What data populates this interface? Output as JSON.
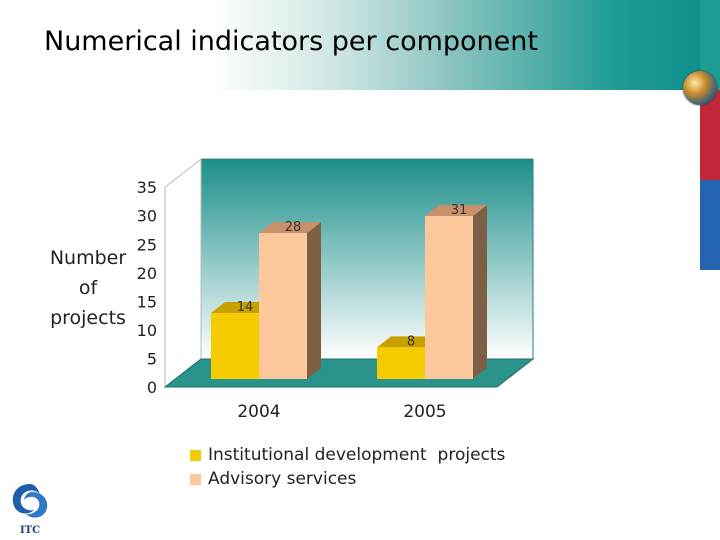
{
  "header": {
    "title": "Numerical indicators per component"
  },
  "brand": {
    "logo_text": "ITC",
    "globe_icon": "globe-icon",
    "strip_colors": [
      "#1f9b96",
      "#c0283a",
      "#2463b0"
    ]
  },
  "colors": {
    "back_wall_top": "#1c8f89",
    "back_wall_bottom": "#ffffff",
    "floor": "#2a948c",
    "series_front": [
      "#f5cc00",
      "#fcc89c"
    ],
    "series_top": [
      "#c8a100",
      "#c9906a"
    ],
    "series_side": [
      "#a07e00",
      "#7d5f45"
    ]
  },
  "chart_data": {
    "type": "bar",
    "title": "Numerical indicators per component",
    "ylabel": "Number of projects",
    "ylabel_lines": [
      "Number",
      "of",
      "projects"
    ],
    "xlabel": "",
    "categories": [
      "2004",
      "2005"
    ],
    "series": [
      {
        "name": "Institutional development  projects",
        "values": [
          14,
          8
        ]
      },
      {
        "name": "Advisory services",
        "values": [
          28,
          31
        ]
      }
    ],
    "ylim": [
      0,
      35
    ],
    "yticks": [
      0,
      5,
      10,
      15,
      20,
      25,
      30,
      35
    ],
    "data_labels": true,
    "legend": "bottom",
    "grid": false,
    "style": "3d"
  }
}
